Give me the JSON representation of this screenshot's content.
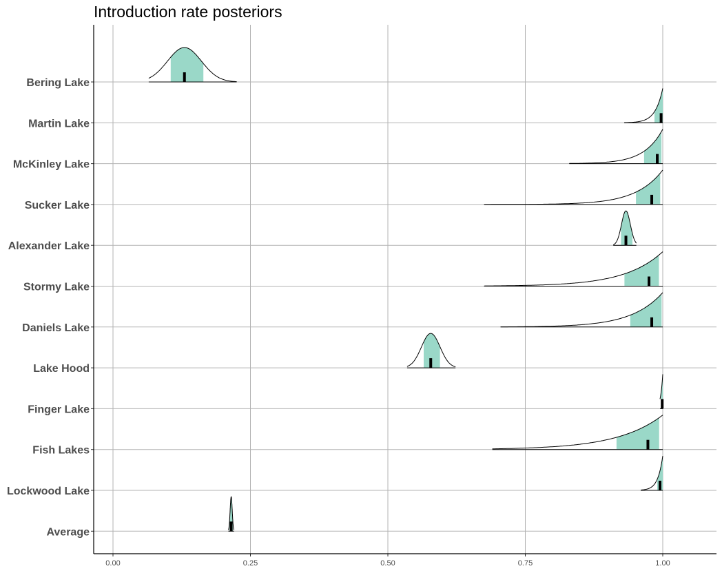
{
  "chart_data": {
    "type": "ridgeline",
    "title": "Introduction rate posteriors",
    "xlabel": "",
    "ylabel": "",
    "xlim": [
      0,
      1
    ],
    "x_ticks": [
      "0.00",
      "0.25",
      "0.50",
      "0.75",
      "1.00"
    ],
    "x_tick_values": [
      0,
      0.25,
      0.5,
      0.75,
      1
    ],
    "grid": true,
    "fill_color": "#9ad8c8",
    "series": [
      {
        "name": "Bering Lake",
        "median": 0.13,
        "ci": [
          0.105,
          0.165
        ],
        "range": [
          0.065,
          0.225
        ],
        "shape": "bell"
      },
      {
        "name": "Martin Lake",
        "median": 0.997,
        "ci": [
          0.985,
          1.0
        ],
        "range": [
          0.93,
          1.0
        ],
        "shape": "right-skew"
      },
      {
        "name": "McKinley Lake",
        "median": 0.99,
        "ci": [
          0.965,
          0.998
        ],
        "range": [
          0.83,
          1.0
        ],
        "shape": "right-skew"
      },
      {
        "name": "Sucker Lake",
        "median": 0.98,
        "ci": [
          0.95,
          0.997
        ],
        "range": [
          0.675,
          1.0
        ],
        "shape": "right-skew"
      },
      {
        "name": "Alexander Lake",
        "median": 0.933,
        "ci": [
          0.924,
          0.945
        ],
        "range": [
          0.91,
          0.952
        ],
        "shape": "bell"
      },
      {
        "name": "Stormy Lake",
        "median": 0.975,
        "ci": [
          0.93,
          0.995
        ],
        "range": [
          0.675,
          1.0
        ],
        "shape": "right-skew"
      },
      {
        "name": "Daniels Lake",
        "median": 0.98,
        "ci": [
          0.94,
          0.998
        ],
        "range": [
          0.705,
          1.0
        ],
        "shape": "right-skew"
      },
      {
        "name": "Lake Hood",
        "median": 0.578,
        "ci": [
          0.565,
          0.595
        ],
        "range": [
          0.535,
          0.623
        ],
        "shape": "bell"
      },
      {
        "name": "Finger Lake",
        "median": 0.999,
        "ci": [
          0.997,
          1.0
        ],
        "range": [
          0.995,
          1.0
        ],
        "shape": "right-skew"
      },
      {
        "name": "Fish Lakes",
        "median": 0.973,
        "ci": [
          0.915,
          0.995
        ],
        "range": [
          0.69,
          1.0
        ],
        "shape": "right-skew"
      },
      {
        "name": "Lockwood Lake",
        "median": 0.995,
        "ci": [
          0.99,
          1.0
        ],
        "range": [
          0.96,
          1.0
        ],
        "shape": "right-skew"
      },
      {
        "name": "Average",
        "median": 0.215,
        "ci": [
          0.212,
          0.218
        ],
        "range": [
          0.21,
          0.22
        ],
        "shape": "bell"
      }
    ]
  }
}
